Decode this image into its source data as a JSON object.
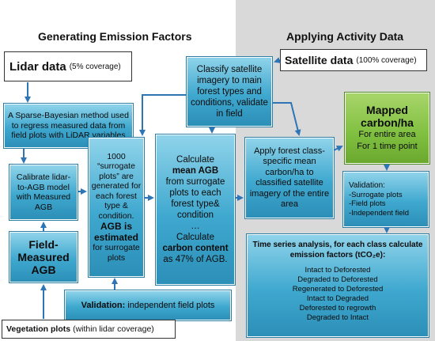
{
  "headings": {
    "left": "Generating Emission Factors",
    "right": "Applying Activity Data"
  },
  "lidar": {
    "title": "Lidar data",
    "coverage": "(5% coverage)"
  },
  "satellite": {
    "title": "Satellite data",
    "coverage": "(100% coverage)"
  },
  "classify": "Classify satellite imagery to main forest types and conditions, validate in field",
  "bayesian": "A Sparse-Bayesian method used to regress measured data from field plots with LiDAR variables",
  "calibrate": "Calibrate lidar-to-AGB model with Measured AGB",
  "field_measured": {
    "line1": "Field-",
    "line2": "Measured",
    "line3": "AGB"
  },
  "surrogate": {
    "line1": "1000",
    "line2": "“surrogate plots” are generated for each forest type & condition.",
    "bold": "AGB is estimated",
    "line3": "for surrogate plots"
  },
  "calculate": {
    "pre": "Calculate",
    "bold1": "mean AGB",
    "mid": "from surrogate plots to each forest type& condition",
    "dots": "…",
    "pre2": "Calculate",
    "bold2": "carbon content",
    "post": "as 47% of AGB."
  },
  "validation_left": {
    "bold": "Validation:",
    "rest": "independent field plots"
  },
  "vegetation": {
    "bold": "Vegetation plots",
    "rest": "(within lidar coverage)"
  },
  "apply": "Apply forest class-specific mean carbon/ha to classified satellite imagery of the entire area",
  "mapped": {
    "line1": "Mapped",
    "line2": "carbon/ha",
    "line3": "For entire area",
    "line4": "For 1 time point"
  },
  "validation_right": {
    "title": "Validation:",
    "items": [
      "-Surrogate plots",
      "-Field plots",
      "-Independent field"
    ]
  },
  "timeseries": {
    "title": "Time series analysis, for each class calculate emission factors (tCO₂e):",
    "items": [
      "Intact to Deforested",
      "Degraded to Deforested",
      "Regenerated to Deforested",
      "Intact to Degraded",
      "Deforested to regrowth",
      "Degraded to Intact"
    ]
  },
  "colors": {
    "arrow": "#2e75b6",
    "box_blue": "#3fa8cf",
    "box_green": "#7fbf3f",
    "panel_gray": "#d9d9d9"
  }
}
